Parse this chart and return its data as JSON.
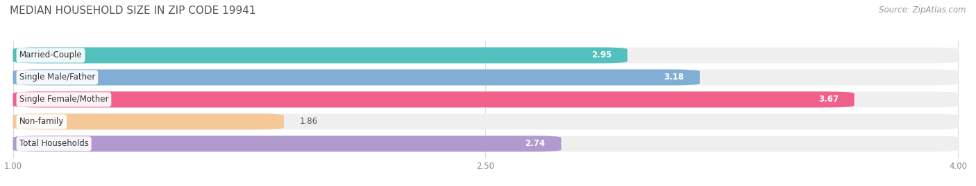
{
  "title": "MEDIAN HOUSEHOLD SIZE IN ZIP CODE 19941",
  "source": "Source: ZipAtlas.com",
  "categories": [
    "Married-Couple",
    "Single Male/Father",
    "Single Female/Mother",
    "Non-family",
    "Total Households"
  ],
  "values": [
    2.95,
    3.18,
    3.67,
    1.86,
    2.74
  ],
  "colors": [
    "#52C0BE",
    "#82AED6",
    "#F0608A",
    "#F5C898",
    "#B09ACE"
  ],
  "bg_color": "#EFEFEF",
  "xlim": [
    1.0,
    4.0
  ],
  "xticks": [
    1.0,
    2.5,
    4.0
  ],
  "xtick_labels": [
    "1.00",
    "2.50",
    "4.00"
  ],
  "bar_height": 0.72,
  "bar_gap": 1.0,
  "title_fontsize": 11,
  "label_fontsize": 8.5,
  "value_fontsize": 8.5,
  "source_fontsize": 8.5
}
